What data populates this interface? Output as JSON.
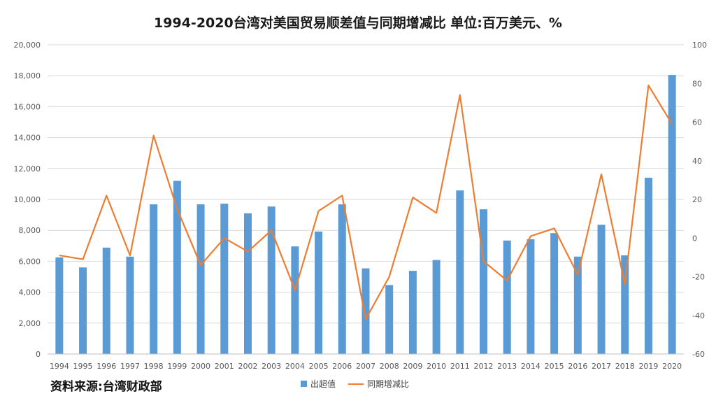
{
  "title": "1994-2020台湾对美国贸易顺差值与同期增减比 单位:百万美元、%",
  "source_note": "资料来源:台湾财政部",
  "colors": {
    "bar": "#5B9BD5",
    "line": "#ED7D31",
    "grid": "#D9D9D9"
  },
  "chart_data": {
    "type": "bar",
    "categories": [
      "1994",
      "1995",
      "1996",
      "1997",
      "1998",
      "1999",
      "2000",
      "2001",
      "2002",
      "2003",
      "2004",
      "2005",
      "2006",
      "2007",
      "2008",
      "2009",
      "2010",
      "2011",
      "2012",
      "2013",
      "2014",
      "2015",
      "2016",
      "2017",
      "2018",
      "2019",
      "2020"
    ],
    "series": [
      {
        "name": "出超值",
        "type": "bar",
        "axis": "left",
        "values": [
          6250,
          5600,
          6880,
          6300,
          9680,
          11200,
          9680,
          9720,
          9100,
          9540,
          6960,
          7920,
          9680,
          5540,
          4460,
          5380,
          6080,
          10580,
          9360,
          7340,
          7420,
          7820,
          6300,
          8360,
          6380,
          11400,
          18050
        ]
      },
      {
        "name": "同期增减比",
        "type": "line",
        "axis": "right",
        "values": [
          -9,
          -11,
          22,
          -9,
          53,
          15,
          -14,
          0,
          -7,
          4,
          -27,
          14,
          22,
          -42,
          -20,
          21,
          13,
          74,
          -12,
          -22,
          1,
          5,
          -19,
          33,
          -24,
          79,
          59
        ]
      }
    ],
    "y_left": {
      "ylim": [
        0,
        20000
      ],
      "ticks": [
        "0",
        "2,000",
        "4,000",
        "6,000",
        "8,000",
        "10,000",
        "12,000",
        "14,000",
        "16,000",
        "18,000",
        "20,000"
      ]
    },
    "y_right": {
      "ylim": [
        -60,
        100
      ],
      "ticks": [
        "-60",
        "-40",
        "-20",
        "0",
        "20",
        "40",
        "60",
        "80",
        "100"
      ]
    },
    "grid": true,
    "legend": "bottom-center"
  }
}
